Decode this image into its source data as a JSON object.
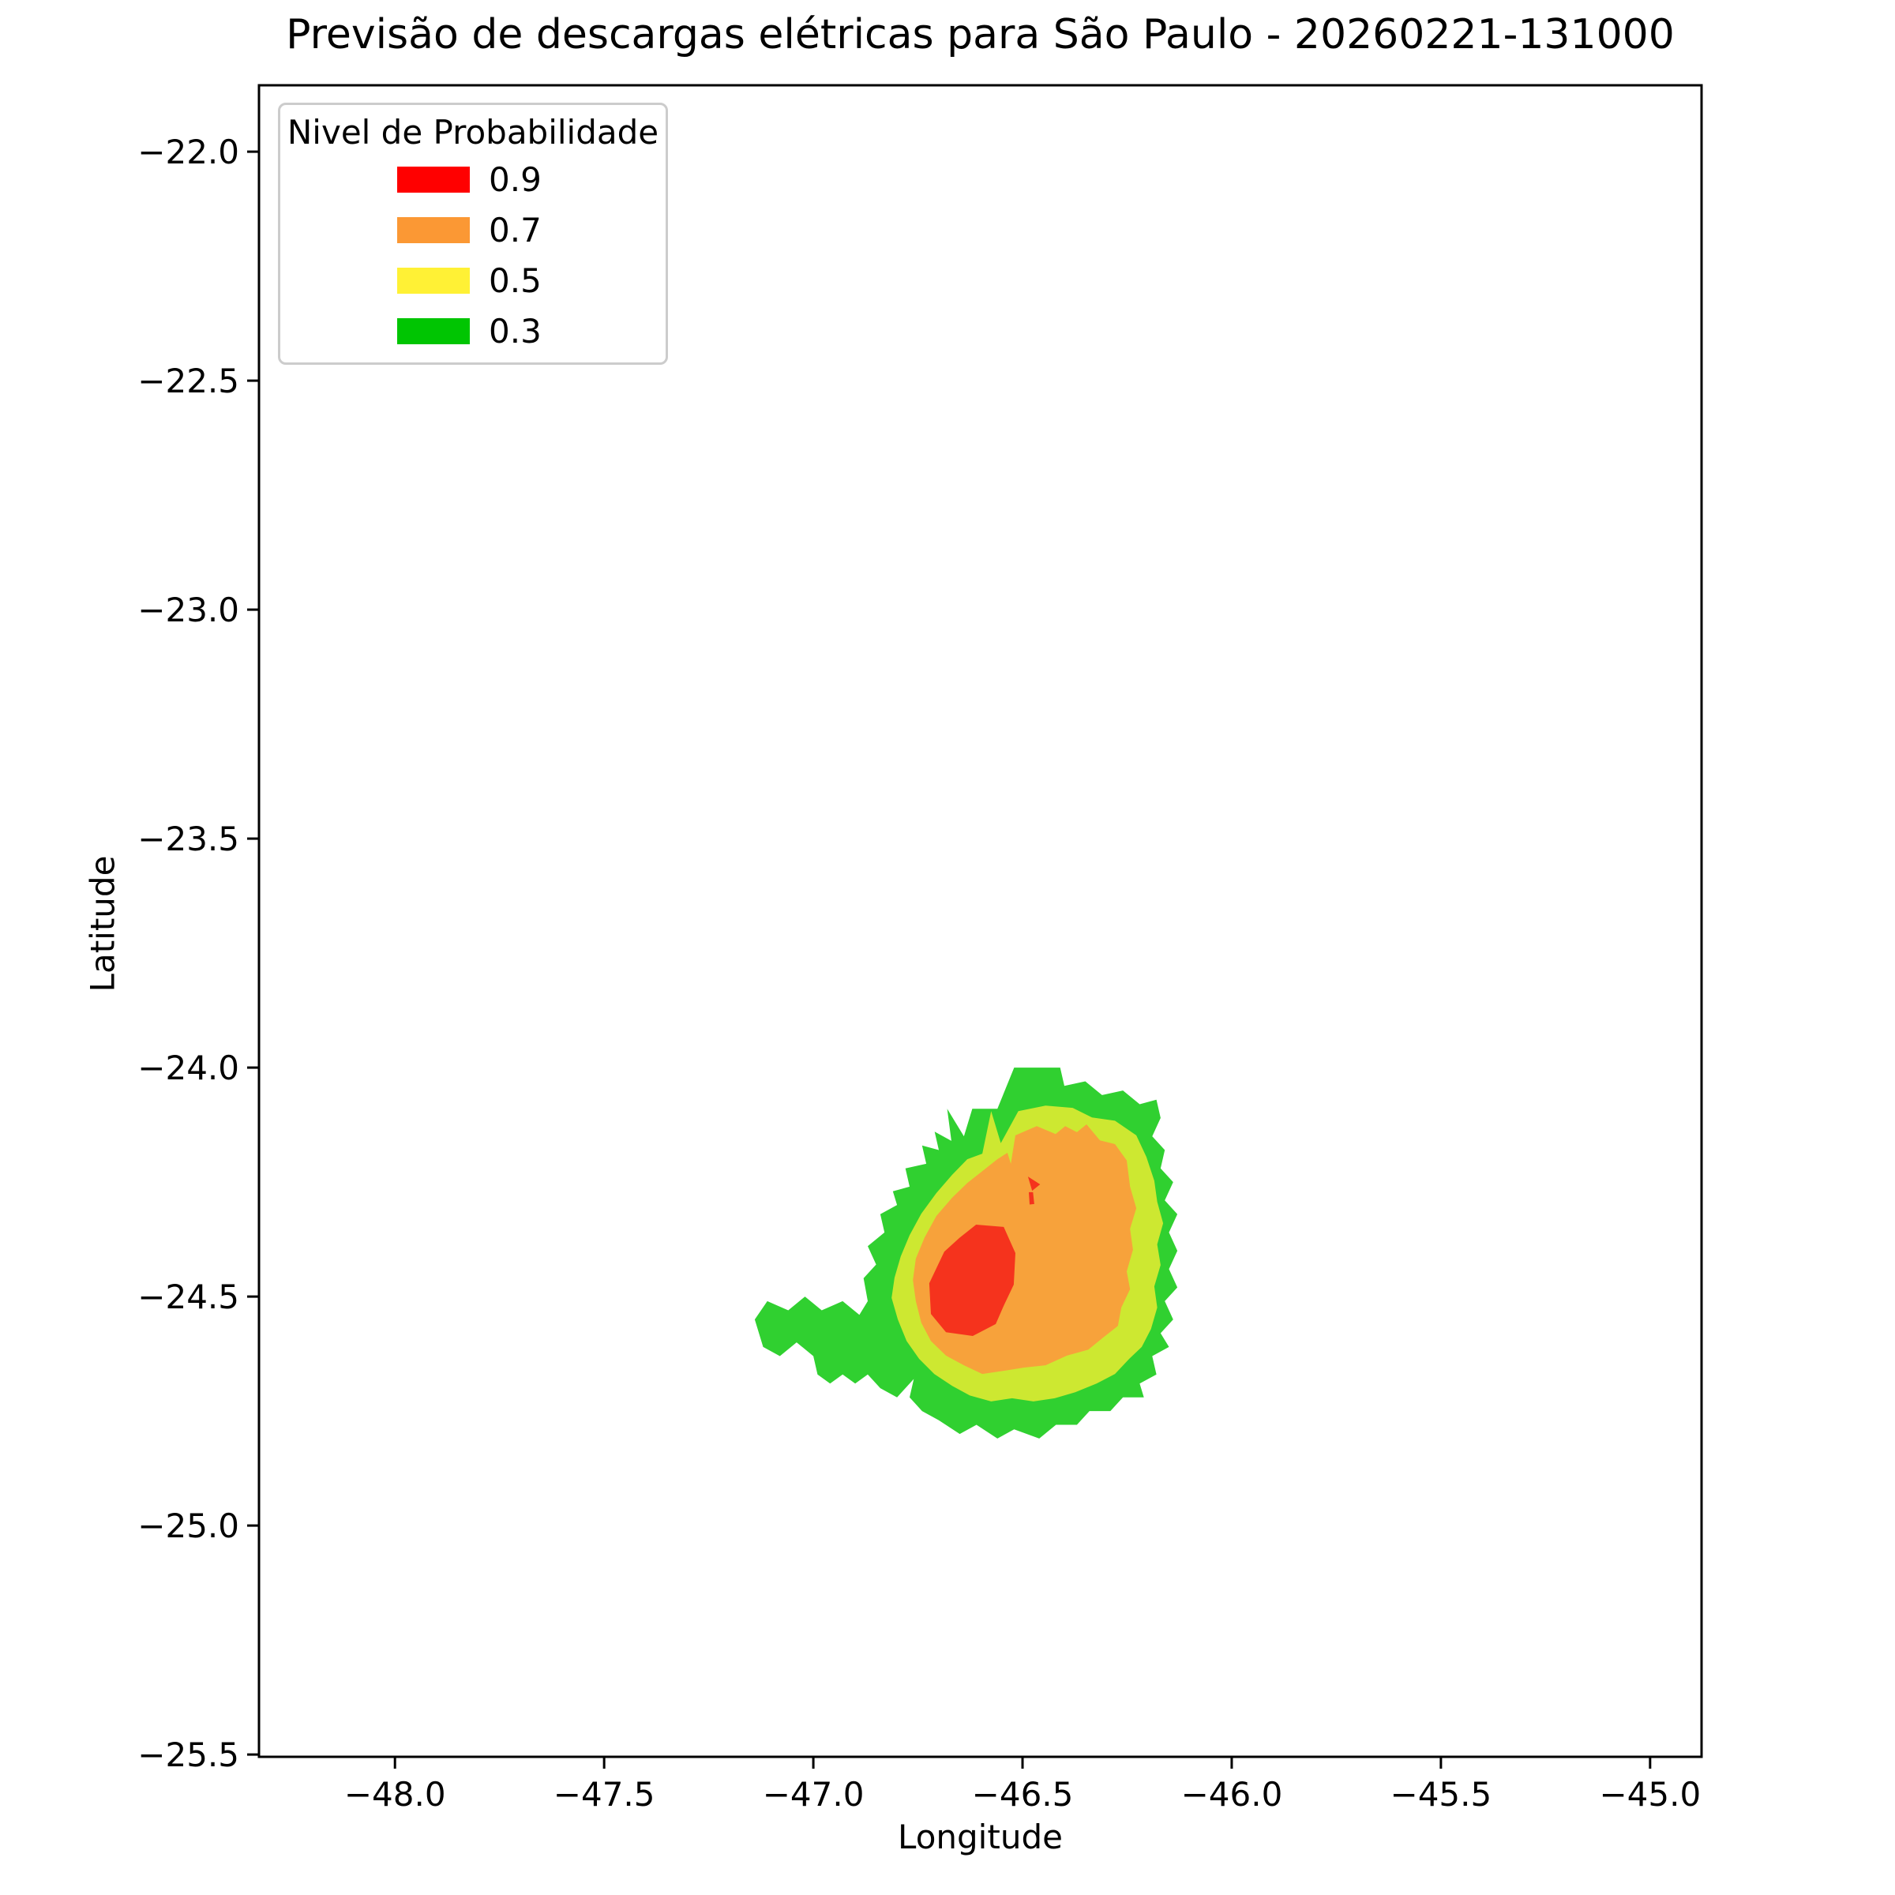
{
  "chart_data": {
    "type": "heatmap",
    "subtype": "filled-contour-probability-map",
    "title": "Previsão de descargas elétricas para São Paulo - 20260221-131000",
    "xlabel": "Longitude",
    "ylabel": "Latitude",
    "xlim": [
      -48.325,
      -44.877
    ],
    "ylim": [
      -25.505,
      -21.855
    ],
    "xticks": [
      -48.0,
      -47.5,
      -47.0,
      -46.5,
      -46.0,
      -45.5,
      -45.0
    ],
    "xtick_labels": [
      "−48.0",
      "−47.5",
      "−47.0",
      "−46.5",
      "−46.0",
      "−45.5",
      "−45.0"
    ],
    "yticks": [
      -22.0,
      -22.5,
      -23.0,
      -23.5,
      -24.0,
      -24.5,
      -25.0,
      -25.5
    ],
    "ytick_labels": [
      "−22.0",
      "−22.5",
      "−23.0",
      "−23.5",
      "−24.0",
      "−24.5",
      "−25.0",
      "−25.5"
    ],
    "grid": false,
    "background": "#ffffff",
    "axes_color": "#000000",
    "legend": {
      "title": "Nivel de Probabilidade",
      "position": "upper-left",
      "entries": [
        {
          "label": "0.9",
          "color": "#FF0000"
        },
        {
          "label": "0.7",
          "color": "#FB9834"
        },
        {
          "label": "0.5",
          "color": "#FFF135"
        },
        {
          "label": "0.3",
          "color": "#00C502"
        }
      ]
    },
    "levels": [
      {
        "probability": 0.3,
        "color": "#30D030",
        "polygons": [
          [
            [
              -46.52,
              -24.0
            ],
            [
              -46.41,
              -24.0
            ],
            [
              -46.4,
              -24.04
            ],
            [
              -46.35,
              -24.03
            ],
            [
              -46.31,
              -24.06
            ],
            [
              -46.26,
              -24.05
            ],
            [
              -46.22,
              -24.08
            ],
            [
              -46.18,
              -24.07
            ],
            [
              -46.17,
              -24.11
            ],
            [
              -46.19,
              -24.15
            ],
            [
              -46.16,
              -24.18
            ],
            [
              -46.17,
              -24.22
            ],
            [
              -46.14,
              -24.25
            ],
            [
              -46.16,
              -24.29
            ],
            [
              -46.13,
              -24.32
            ],
            [
              -46.15,
              -24.36
            ],
            [
              -46.13,
              -24.4
            ],
            [
              -46.15,
              -24.44
            ],
            [
              -46.13,
              -24.48
            ],
            [
              -46.16,
              -24.51
            ],
            [
              -46.14,
              -24.55
            ],
            [
              -46.17,
              -24.58
            ],
            [
              -46.15,
              -24.61
            ],
            [
              -46.19,
              -24.63
            ],
            [
              -46.18,
              -24.67
            ],
            [
              -46.22,
              -24.69
            ],
            [
              -46.21,
              -24.72
            ],
            [
              -46.26,
              -24.72
            ],
            [
              -46.29,
              -24.75
            ],
            [
              -46.34,
              -24.75
            ],
            [
              -46.37,
              -24.78
            ],
            [
              -46.42,
              -24.78
            ],
            [
              -46.46,
              -24.81
            ],
            [
              -46.52,
              -24.79
            ],
            [
              -46.56,
              -24.81
            ],
            [
              -46.61,
              -24.78
            ],
            [
              -46.65,
              -24.8
            ],
            [
              -46.7,
              -24.77
            ],
            [
              -46.74,
              -24.75
            ],
            [
              -46.77,
              -24.72
            ],
            [
              -46.76,
              -24.68
            ],
            [
              -46.8,
              -24.72
            ],
            [
              -46.84,
              -24.7
            ],
            [
              -46.87,
              -24.67
            ],
            [
              -46.9,
              -24.69
            ],
            [
              -46.93,
              -24.67
            ],
            [
              -46.96,
              -24.69
            ],
            [
              -46.99,
              -24.67
            ],
            [
              -47.0,
              -24.63
            ],
            [
              -47.04,
              -24.6
            ],
            [
              -47.08,
              -24.63
            ],
            [
              -47.12,
              -24.61
            ],
            [
              -47.14,
              -24.55
            ],
            [
              -47.11,
              -24.51
            ],
            [
              -47.06,
              -24.53
            ],
            [
              -47.02,
              -24.5
            ],
            [
              -46.98,
              -24.53
            ],
            [
              -46.93,
              -24.51
            ],
            [
              -46.89,
              -24.54
            ],
            [
              -46.87,
              -24.51
            ],
            [
              -46.88,
              -24.46
            ],
            [
              -46.85,
              -24.43
            ],
            [
              -46.87,
              -24.39
            ],
            [
              -46.83,
              -24.36
            ],
            [
              -46.84,
              -24.32
            ],
            [
              -46.8,
              -24.3
            ],
            [
              -46.81,
              -24.27
            ],
            [
              -46.77,
              -24.26
            ],
            [
              -46.78,
              -24.22
            ],
            [
              -46.73,
              -24.21
            ],
            [
              -46.74,
              -24.17
            ],
            [
              -46.7,
              -24.18
            ],
            [
              -46.71,
              -24.14
            ],
            [
              -46.67,
              -24.16
            ],
            [
              -46.68,
              -24.09
            ],
            [
              -46.64,
              -24.15
            ],
            [
              -46.62,
              -24.09
            ],
            [
              -46.56,
              -24.09
            ]
          ]
        ]
      },
      {
        "probability": 0.5,
        "color": "#CDE831",
        "polygons": [
          [
            [
              -46.51,
              -24.095
            ],
            [
              -46.445,
              -24.083
            ],
            [
              -46.38,
              -24.088
            ],
            [
              -46.334,
              -24.109
            ],
            [
              -46.279,
              -24.116
            ],
            [
              -46.228,
              -24.148
            ],
            [
              -46.204,
              -24.195
            ],
            [
              -46.185,
              -24.247
            ],
            [
              -46.178,
              -24.293
            ],
            [
              -46.164,
              -24.34
            ],
            [
              -46.178,
              -24.386
            ],
            [
              -46.17,
              -24.431
            ],
            [
              -46.185,
              -24.478
            ],
            [
              -46.178,
              -24.524
            ],
            [
              -46.193,
              -24.571
            ],
            [
              -46.215,
              -24.61
            ],
            [
              -46.245,
              -24.636
            ],
            [
              -46.279,
              -24.669
            ],
            [
              -46.323,
              -24.69
            ],
            [
              -46.374,
              -24.709
            ],
            [
              -46.423,
              -24.722
            ],
            [
              -46.474,
              -24.729
            ],
            [
              -46.525,
              -24.722
            ],
            [
              -46.575,
              -24.729
            ],
            [
              -46.626,
              -24.716
            ],
            [
              -46.668,
              -24.695
            ],
            [
              -46.711,
              -24.669
            ],
            [
              -46.747,
              -24.636
            ],
            [
              -46.777,
              -24.597
            ],
            [
              -46.798,
              -24.55
            ],
            [
              -46.813,
              -24.503
            ],
            [
              -46.806,
              -24.459
            ],
            [
              -46.791,
              -24.412
            ],
            [
              -46.77,
              -24.366
            ],
            [
              -46.742,
              -24.319
            ],
            [
              -46.706,
              -24.274
            ],
            [
              -46.668,
              -24.234
            ],
            [
              -46.632,
              -24.2
            ],
            [
              -46.596,
              -24.188
            ],
            [
              -46.575,
              -24.095
            ],
            [
              -46.552,
              -24.165
            ]
          ]
        ]
      },
      {
        "probability": 0.7,
        "color": "#F7A23B",
        "polygons": [
          [
            [
              -46.517,
              -24.148
            ],
            [
              -46.466,
              -24.128
            ],
            [
              -46.421,
              -24.145
            ],
            [
              -46.398,
              -24.128
            ],
            [
              -46.37,
              -24.141
            ],
            [
              -46.347,
              -24.124
            ],
            [
              -46.315,
              -24.159
            ],
            [
              -46.279,
              -24.167
            ],
            [
              -46.251,
              -24.203
            ],
            [
              -46.243,
              -24.26
            ],
            [
              -46.228,
              -24.307
            ],
            [
              -46.243,
              -24.352
            ],
            [
              -46.236,
              -24.398
            ],
            [
              -46.251,
              -24.445
            ],
            [
              -46.243,
              -24.484
            ],
            [
              -46.264,
              -24.524
            ],
            [
              -46.272,
              -24.564
            ],
            [
              -46.308,
              -24.59
            ],
            [
              -46.343,
              -24.616
            ],
            [
              -46.394,
              -24.629
            ],
            [
              -46.445,
              -24.65
            ],
            [
              -46.496,
              -24.655
            ],
            [
              -46.545,
              -24.662
            ],
            [
              -46.596,
              -24.669
            ],
            [
              -46.64,
              -24.65
            ],
            [
              -46.683,
              -24.629
            ],
            [
              -46.719,
              -24.597
            ],
            [
              -46.742,
              -24.557
            ],
            [
              -46.755,
              -24.51
            ],
            [
              -46.762,
              -24.464
            ],
            [
              -46.755,
              -24.417
            ],
            [
              -46.734,
              -24.371
            ],
            [
              -46.706,
              -24.324
            ],
            [
              -46.668,
              -24.284
            ],
            [
              -46.632,
              -24.252
            ],
            [
              -46.596,
              -24.226
            ],
            [
              -46.56,
              -24.2
            ],
            [
              -46.536,
              -24.186
            ],
            [
              -46.528,
              -24.21
            ]
          ]
        ]
      },
      {
        "probability": 0.9,
        "color": "#F5331D",
        "polygons": [
          [
            [
              -46.611,
              -24.343
            ],
            [
              -46.545,
              -24.348
            ],
            [
              -46.517,
              -24.405
            ],
            [
              -46.521,
              -24.474
            ],
            [
              -46.545,
              -24.52
            ],
            [
              -46.564,
              -24.56
            ],
            [
              -46.619,
              -24.586
            ],
            [
              -46.683,
              -24.578
            ],
            [
              -46.719,
              -24.538
            ],
            [
              -46.723,
              -24.471
            ],
            [
              -46.687,
              -24.402
            ],
            [
              -46.651,
              -24.372
            ]
          ],
          [
            [
              -46.487,
              -24.238
            ],
            [
              -46.458,
              -24.255
            ],
            [
              -46.477,
              -24.269
            ]
          ],
          [
            [
              -46.485,
              -24.272
            ],
            [
              -46.475,
              -24.272
            ],
            [
              -46.472,
              -24.298
            ],
            [
              -46.483,
              -24.299
            ]
          ]
        ]
      }
    ]
  }
}
